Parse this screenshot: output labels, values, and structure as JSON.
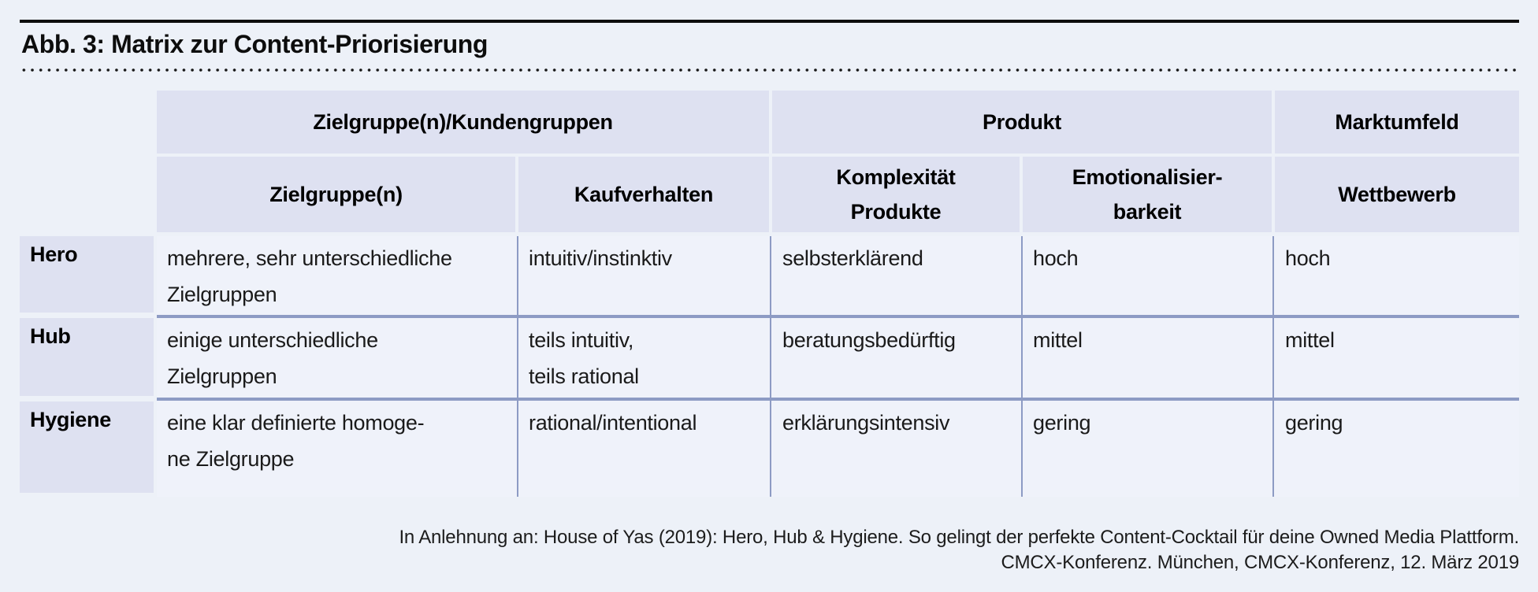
{
  "figure": {
    "caption": "Abb. 3: Matrix zur Content-Priorisierung"
  },
  "colors": {
    "page_background": "#edf1f8",
    "header_cell_fill": "#dee1f1",
    "body_cell_fill": "#eff2fa",
    "grid_line": "#8d9bc4",
    "caption_rule": "#0d0d0d"
  },
  "table": {
    "group_headers": [
      "Zielgruppe(n)/Kundengruppen",
      "Produkt",
      "Marktumfeld"
    ],
    "column_headers": {
      "zielgruppen": "Zielgruppe(n)",
      "kaufverhalten": "Kaufverhalten",
      "komplexitaet_line1": "Komplexität",
      "komplexitaet_line2": "Produkte",
      "emotionalisierbarkeit_line1": "Emotionalisier-",
      "emotionalisierbarkeit_line2": "barkeit",
      "wettbewerb": "Wettbewerb"
    },
    "rows": [
      {
        "label": "Hero",
        "zielgruppen_line1": "mehrere, sehr unterschiedliche",
        "zielgruppen_line2": "Zielgruppen",
        "kaufverhalten_line1": "intuitiv/instinktiv",
        "komplexitaet": "selbsterklärend",
        "emotionalisierbarkeit": "hoch",
        "wettbewerb": "hoch"
      },
      {
        "label": "Hub",
        "zielgruppen_line1": "einige unterschiedliche",
        "zielgruppen_line2": "Zielgruppen",
        "kaufverhalten_line1": "teils intuitiv,",
        "kaufverhalten_line2": "teils rational",
        "komplexitaet": "beratungsbedürftig",
        "emotionalisierbarkeit": "mittel",
        "wettbewerb": "mittel"
      },
      {
        "label": "Hygiene",
        "zielgruppen_line1": "eine klar definierte homoge-",
        "zielgruppen_line2": "ne Zielgruppe",
        "kaufverhalten_line1": "rational/intentional",
        "komplexitaet": "erklärungsintensiv",
        "emotionalisierbarkeit": "gering",
        "wettbewerb": "gering"
      }
    ]
  },
  "footer": {
    "line1": "In Anlehnung an: House of Yas (2019): Hero, Hub & Hygiene. So gelingt der perfekte Content-Cocktail für deine Owned Media Plattform.",
    "line2": "CMCX-Konferenz. München, CMCX-Konferenz, 12. März 2019"
  }
}
